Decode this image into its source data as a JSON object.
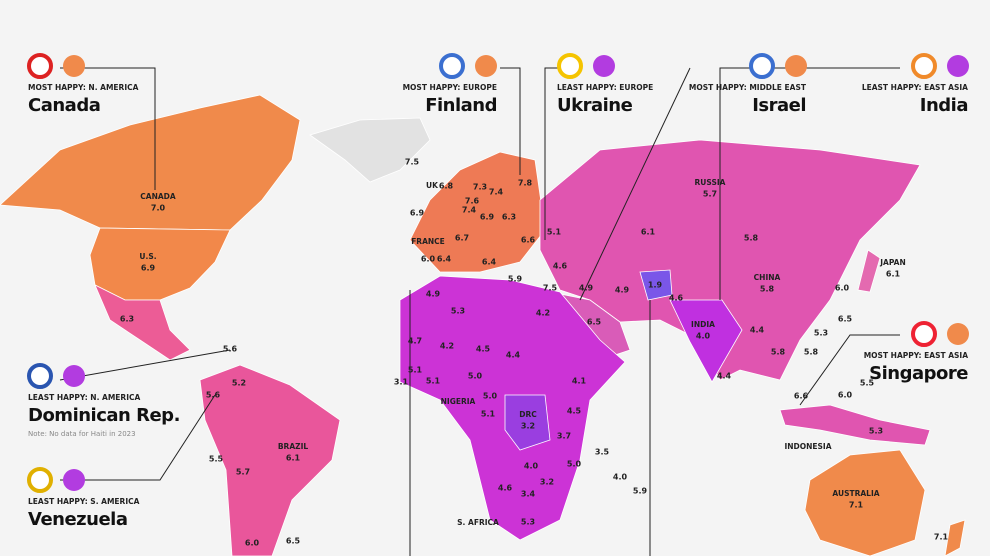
{
  "callouts": [
    {
      "tag": "MOST HAPPY: N. AMERICA",
      "name": "Canada"
    },
    {
      "tag": "MOST HAPPY: EUROPE",
      "name": "Finland"
    },
    {
      "tag": "LEAST HAPPY: EUROPE",
      "name": "Ukraine"
    },
    {
      "tag": "MOST HAPPY: MIDDLE EAST",
      "name": "Israel"
    },
    {
      "tag": "LEAST HAPPY: EAST ASIA",
      "name": "India"
    },
    {
      "tag": "LEAST HAPPY: N. AMERICA",
      "name": "Dominican Rep.",
      "note": "Note: No data for Haiti in 2023"
    },
    {
      "tag": "LEAST HAPPY: S. AMERICA",
      "name": "Venezuela"
    },
    {
      "tag": "MOST HAPPY: EAST ASIA",
      "name": "Singapore"
    }
  ],
  "named_labels": [
    {
      "name": "CANADA",
      "value": "7.0"
    },
    {
      "name": "U.S.",
      "value": "6.9"
    },
    {
      "name": "BRAZIL",
      "value": "6.1"
    },
    {
      "name": "RUSSIA",
      "value": "5.7"
    },
    {
      "name": "CHINA",
      "value": "5.8"
    },
    {
      "name": "INDIA",
      "value": "4.0"
    },
    {
      "name": "JAPAN",
      "value": "6.1"
    },
    {
      "name": "AUSTRALIA",
      "value": "7.1"
    },
    {
      "name": "UK",
      "value": "6.8"
    },
    {
      "name": "FRANCE",
      "value": "6.0"
    },
    {
      "name": "DRC",
      "value": "3.2"
    }
  ],
  "place_names": [
    "NIGERIA",
    "S. AFRICA",
    "INDONESIA"
  ],
  "values": [
    "7.5",
    "7.8",
    "7.3",
    "7.4",
    "7.6",
    "7.4",
    "6.9",
    "6.9",
    "6.3",
    "5.1",
    "6.1",
    "5.8",
    "6.7",
    "6.6",
    "6.4",
    "6.4",
    "5.9",
    "7.5",
    "4.6",
    "4.9",
    "4.9",
    "1.9",
    "4.6",
    "6.0",
    "4.9",
    "5.3",
    "4.2",
    "6.5",
    "6.5",
    "5.3",
    "6.3",
    "4.7",
    "4.2",
    "4.5",
    "4.4",
    "4.4",
    "5.8",
    "5.8",
    "5.6",
    "4.1",
    "5.0",
    "5.1",
    "5.1",
    "3.1",
    "4.4",
    "5.5",
    "5.2",
    "5.6",
    "6.6",
    "6.0",
    "4.5",
    "5.0",
    "5.1",
    "3.7",
    "4.0",
    "3.2",
    "5.0",
    "3.5",
    "4.0",
    "5.9",
    "5.5",
    "5.7",
    "4.6",
    "3.4",
    "5.3",
    "5.3",
    "6.0",
    "6.5",
    "7.1"
  ]
}
